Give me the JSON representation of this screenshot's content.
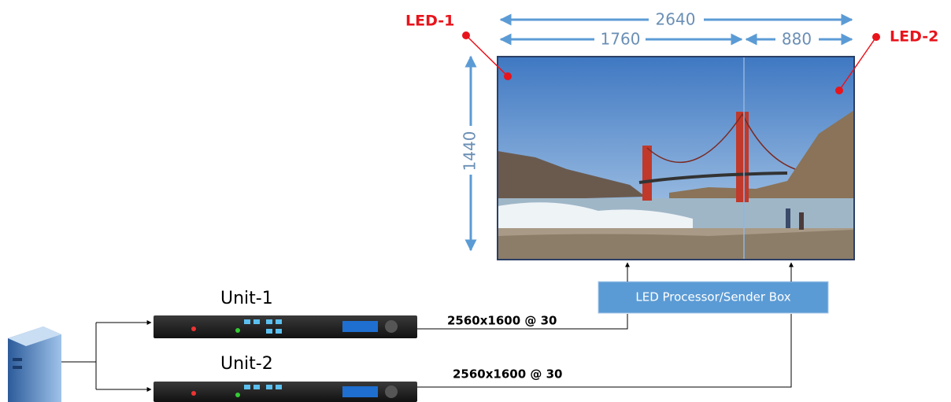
{
  "labels": {
    "led1": "LED-1",
    "led2": "LED-2",
    "unit1": "Unit-1",
    "unit2": "Unit-2",
    "processor": "LED Processor/Sender Box"
  },
  "dimensions": {
    "total_width": 2640,
    "led1_width": 1760,
    "led2_width": 880,
    "height": 1440
  },
  "connections": [
    {
      "signal": "2560x1600 @ 30"
    },
    {
      "signal": "2560x1600 @ 30"
    }
  ]
}
